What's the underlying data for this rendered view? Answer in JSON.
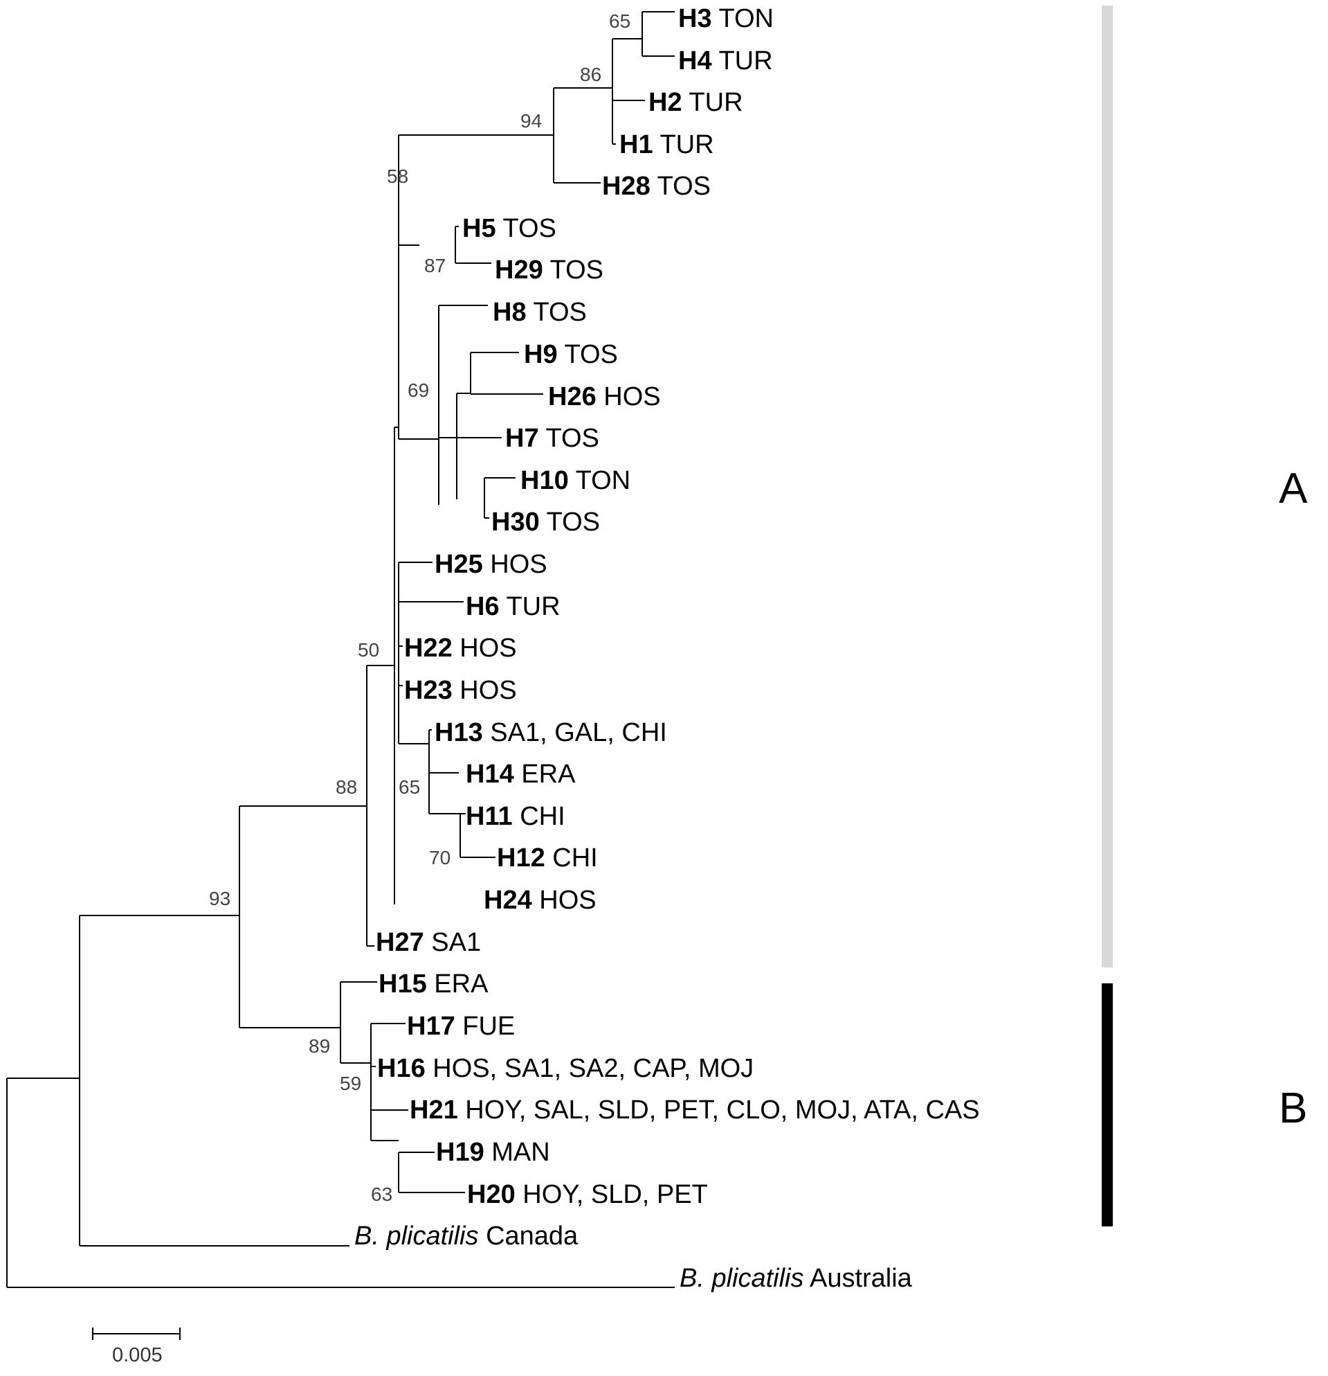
{
  "tree": {
    "tips": [
      {
        "id": "H3",
        "label": "TON"
      },
      {
        "id": "H4",
        "label": "TUR"
      },
      {
        "id": "H2",
        "label": "TUR"
      },
      {
        "id": "H1",
        "label": "TUR"
      },
      {
        "id": "H28",
        "label": "TOS"
      },
      {
        "id": "H5",
        "label": "TOS"
      },
      {
        "id": "H29",
        "label": "TOS"
      },
      {
        "id": "H8",
        "label": "TOS"
      },
      {
        "id": "H9",
        "label": "TOS"
      },
      {
        "id": "H26",
        "label": "HOS"
      },
      {
        "id": "H7",
        "label": "TOS"
      },
      {
        "id": "H10",
        "label": "TON"
      },
      {
        "id": "H30",
        "label": "TOS"
      },
      {
        "id": "H25",
        "label": "HOS"
      },
      {
        "id": "H6",
        "label": "TUR"
      },
      {
        "id": "H22",
        "label": "HOS"
      },
      {
        "id": "H23",
        "label": "HOS"
      },
      {
        "id": "H13",
        "label": "SA1, GAL, CHI"
      },
      {
        "id": "H14",
        "label": "ERA"
      },
      {
        "id": "H11",
        "label": "CHI"
      },
      {
        "id": "H12",
        "label": "CHI"
      },
      {
        "id": "H24",
        "label": "HOS"
      },
      {
        "id": "H27",
        "label": "SA1"
      },
      {
        "id": "H15",
        "label": "ERA"
      },
      {
        "id": "H17",
        "label": "FUE"
      },
      {
        "id": "H16",
        "label": "HOS, SA1, SA2, CAP, MOJ"
      },
      {
        "id": "H21",
        "label": "HOY, SAL, SLD, PET, CLO, MOJ, ATA, CAS"
      },
      {
        "id": "H19",
        "label": "MAN"
      },
      {
        "id": "H20",
        "label": "HOY, SLD, PET"
      }
    ],
    "outgroups": [
      {
        "species": "B. plicatilis",
        "label": "Canada"
      },
      {
        "species": "B. plicatilis",
        "label": "Australia"
      }
    ],
    "bootstrap": [
      "65",
      "86",
      "94",
      "58",
      "87",
      "69",
      "50",
      "65",
      "70",
      "88",
      "93",
      "89",
      "59",
      "63"
    ],
    "clades": [
      {
        "label": "A",
        "color": "#d9d9d9"
      },
      {
        "label": "B",
        "color": "#000000"
      }
    ],
    "scale_bar": {
      "label": "0.005"
    }
  }
}
